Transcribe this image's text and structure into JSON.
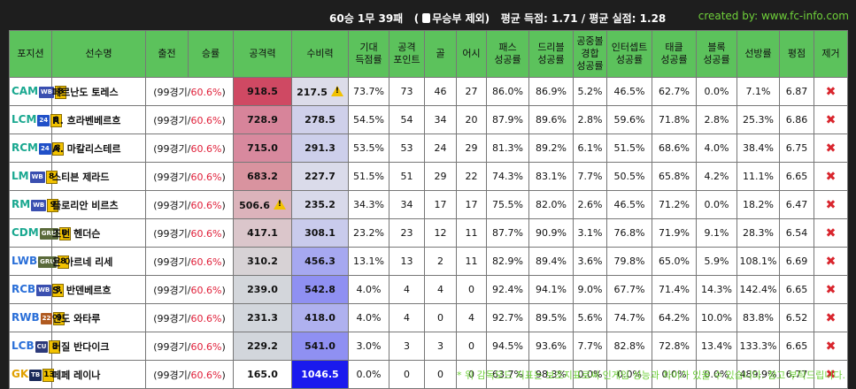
{
  "summary": {
    "record": "60승 1무 39패",
    "exclude_draw": "무승부 제외)",
    "open_paren": "(",
    "avg_text": "평균 득점: 1.71 / 평균 실점: 1.28"
  },
  "credit": "created by: www.fc-info.com",
  "headers": [
    "포지션",
    "선수명",
    "출전",
    "승률",
    "공격력",
    "수비력",
    "기대\n득점률",
    "공격\n포인트",
    "골",
    "어시",
    "패스\n성공률",
    "드리블\n성공률",
    "공중볼\n경합\n성공률",
    "인터셉트\n성공률",
    "태클\n성공률",
    "블록\n성공률",
    "선방률",
    "평점",
    "제거"
  ],
  "colors": {
    "header_bg": "#5cc25c",
    "credit": "#6fd13a",
    "pct_red": "#e0203a",
    "remove_icon": "#d9262e"
  },
  "rows": [
    {
      "pos": "CAM",
      "pos_color": "#1aa890",
      "badge": "WB",
      "badge_color": "#3a4fb0",
      "lvl": "8",
      "name": "페르난도 토레스",
      "games": "(99경기/",
      "rate": "60.6%",
      "close": ")",
      "attack": "918.5",
      "attack_warn": false,
      "defense": "217.5",
      "defense_warn": true,
      "xg": "73.7%",
      "ap": "73",
      "goals": "46",
      "assists": "27",
      "pass": "86.0%",
      "dribble": "86.9%",
      "aerial": "5.2%",
      "intercept": "46.5%",
      "tackle": "62.7%",
      "block": "0.0%",
      "save": "7.1%",
      "rating": "6.87",
      "attack_bg": "#cf4963",
      "defense_bg": "#dcdce9"
    },
    {
      "pos": "LCM",
      "pos_color": "#1aa890",
      "badge": "24",
      "badge_color": "#2050c8",
      "lvl": "8",
      "name": "R. 흐라벤베르흐",
      "games": "(99경기/",
      "rate": "60.6%",
      "close": ")",
      "attack": "728.9",
      "attack_warn": false,
      "defense": "278.5",
      "defense_warn": false,
      "xg": "54.5%",
      "ap": "54",
      "goals": "34",
      "assists": "20",
      "pass": "87.9%",
      "dribble": "89.6%",
      "aerial": "2.8%",
      "intercept": "59.6%",
      "tackle": "71.8%",
      "block": "2.8%",
      "save": "25.3%",
      "rating": "6.86",
      "attack_bg": "#d7849a",
      "defense_bg": "#cfd0ea"
    },
    {
      "pos": "RCM",
      "pos_color": "#1aa890",
      "badge": "24",
      "badge_color": "#2050c8",
      "lvl": "8",
      "name": "A. 마칼리스테르",
      "games": "(99경기/",
      "rate": "60.6%",
      "close": ")",
      "attack": "715.0",
      "attack_warn": false,
      "defense": "291.3",
      "defense_warn": false,
      "xg": "53.5%",
      "ap": "53",
      "goals": "24",
      "assists": "29",
      "pass": "81.3%",
      "dribble": "89.2%",
      "aerial": "6.1%",
      "intercept": "51.5%",
      "tackle": "68.6%",
      "block": "4.0%",
      "save": "38.4%",
      "rating": "6.75",
      "attack_bg": "#d8899e",
      "defense_bg": "#cdcfeb"
    },
    {
      "pos": "LM",
      "pos_color": "#1aa890",
      "badge": "WB",
      "badge_color": "#3a4fb0",
      "lvl": "8",
      "name": "스티븐 제라드",
      "games": "(99경기/",
      "rate": "60.6%",
      "close": ")",
      "attack": "683.2",
      "attack_warn": false,
      "defense": "227.7",
      "defense_warn": false,
      "xg": "51.5%",
      "ap": "51",
      "goals": "29",
      "assists": "22",
      "pass": "74.3%",
      "dribble": "83.1%",
      "aerial": "7.7%",
      "intercept": "50.5%",
      "tackle": "65.8%",
      "block": "4.2%",
      "save": "11.1%",
      "rating": "6.65",
      "attack_bg": "#d9939f",
      "defense_bg": "#dadbea"
    },
    {
      "pos": "RM",
      "pos_color": "#1aa890",
      "badge": "WB",
      "badge_color": "#3a4fb0",
      "lvl": "9",
      "name": "플로리안 비르츠",
      "games": "(99경기/",
      "rate": "60.6%",
      "close": ")",
      "attack": "506.6",
      "attack_warn": true,
      "defense": "235.2",
      "defense_warn": false,
      "xg": "34.3%",
      "ap": "34",
      "goals": "17",
      "assists": "17",
      "pass": "75.5%",
      "dribble": "82.0%",
      "aerial": "2.6%",
      "intercept": "46.5%",
      "tackle": "71.2%",
      "block": "0.0%",
      "save": "18.2%",
      "rating": "6.47",
      "attack_bg": "#dcb3bb",
      "defense_bg": "#d8d9ea"
    },
    {
      "pos": "CDM",
      "pos_color": "#1aa890",
      "badge": "GRU",
      "badge_color": "#5a6a3a",
      "lvl": "8",
      "name": "조던 헨더슨",
      "games": "(99경기/",
      "rate": "60.6%",
      "close": ")",
      "attack": "417.1",
      "attack_warn": false,
      "defense": "308.1",
      "defense_warn": false,
      "xg": "23.2%",
      "ap": "23",
      "goals": "12",
      "assists": "11",
      "pass": "87.7%",
      "dribble": "90.9%",
      "aerial": "3.1%",
      "intercept": "76.8%",
      "tackle": "71.9%",
      "block": "9.1%",
      "save": "28.3%",
      "rating": "6.54",
      "attack_bg": "#dbc6cb",
      "defense_bg": "#c9cbec"
    },
    {
      "pos": "LWB",
      "pos_color": "#2a6fd8",
      "badge": "GRU",
      "badge_color": "#5a6a3a",
      "lvl": "8",
      "name": "욘 아르네 리세",
      "games": "(99경기/",
      "rate": "60.6%",
      "close": ")",
      "attack": "310.2",
      "attack_warn": false,
      "defense": "456.3",
      "defense_warn": false,
      "xg": "13.1%",
      "ap": "13",
      "goals": "2",
      "assists": "11",
      "pass": "82.9%",
      "dribble": "89.4%",
      "aerial": "3.6%",
      "intercept": "79.8%",
      "tackle": "65.0%",
      "block": "5.9%",
      "save": "108.1%",
      "rating": "6.69",
      "attack_bg": "#d7d2d5",
      "defense_bg": "#a6a8f0"
    },
    {
      "pos": "RCB",
      "pos_color": "#2a6fd8",
      "badge": "WB",
      "badge_color": "#3a4fb0",
      "lvl": "8",
      "name": "S. 반덴베르흐",
      "games": "(99경기/",
      "rate": "60.6%",
      "close": ")",
      "attack": "239.0",
      "attack_warn": false,
      "defense": "542.8",
      "defense_warn": false,
      "xg": "4.0%",
      "ap": "4",
      "goals": "4",
      "assists": "0",
      "pass": "92.4%",
      "dribble": "94.1%",
      "aerial": "9.0%",
      "intercept": "67.7%",
      "tackle": "71.4%",
      "block": "14.3%",
      "save": "142.4%",
      "rating": "6.65",
      "attack_bg": "#d3d6db",
      "defense_bg": "#8f90f2"
    },
    {
      "pos": "RWB",
      "pos_color": "#2a6fd8",
      "badge": "22",
      "badge_color": "#b05a20",
      "lvl": "9",
      "name": "엔도 와타루",
      "games": "(99경기/",
      "rate": "60.6%",
      "close": ")",
      "attack": "231.3",
      "attack_warn": false,
      "defense": "418.0",
      "defense_warn": false,
      "xg": "4.0%",
      "ap": "4",
      "goals": "0",
      "assists": "4",
      "pass": "92.7%",
      "dribble": "89.5%",
      "aerial": "5.6%",
      "intercept": "74.7%",
      "tackle": "64.2%",
      "block": "10.0%",
      "save": "83.8%",
      "rating": "6.52",
      "attack_bg": "#d2d6dc",
      "defense_bg": "#afb1ef"
    },
    {
      "pos": "LCB",
      "pos_color": "#2a6fd8",
      "badge": "CU",
      "badge_color": "#2d3a7a",
      "lvl": "8",
      "name": "버질 반다이크",
      "games": "(99경기/",
      "rate": "60.6%",
      "close": ")",
      "attack": "229.2",
      "attack_warn": false,
      "defense": "541.0",
      "defense_warn": false,
      "xg": "3.0%",
      "ap": "3",
      "goals": "3",
      "assists": "0",
      "pass": "94.5%",
      "dribble": "93.6%",
      "aerial": "7.7%",
      "intercept": "82.8%",
      "tackle": "72.8%",
      "block": "13.4%",
      "save": "133.3%",
      "rating": "6.65",
      "attack_bg": "#d2d6dc",
      "defense_bg": "#8f90f2"
    },
    {
      "pos": "GK",
      "pos_color": "#e0a000",
      "badge": "TB",
      "badge_color": "#1a2a5a",
      "lvl": "13",
      "name": "페페 레이나",
      "games": "(99경기/",
      "rate": "60.6%",
      "close": ")",
      "attack": "165.0",
      "attack_warn": false,
      "defense": "1046.5",
      "defense_warn": false,
      "xg": "0.0%",
      "ap": "0",
      "goals": "0",
      "assists": "0",
      "pass": "63.7%",
      "dribble": "98.3%",
      "aerial": "0.0%",
      "intercept": "0.0%",
      "tackle": "0.0%",
      "block": "0.0%",
      "save": "489.9%",
      "rating": "6.77",
      "attack_bg": "#ffffff",
      "defense_bg": "#1a1aee"
    }
  ],
  "footnote": "* 위 감독모드 지표는 보조지표로써 인게임 성능과 차이가 있을 수 있습니다. 참고 부탁드립니다."
}
